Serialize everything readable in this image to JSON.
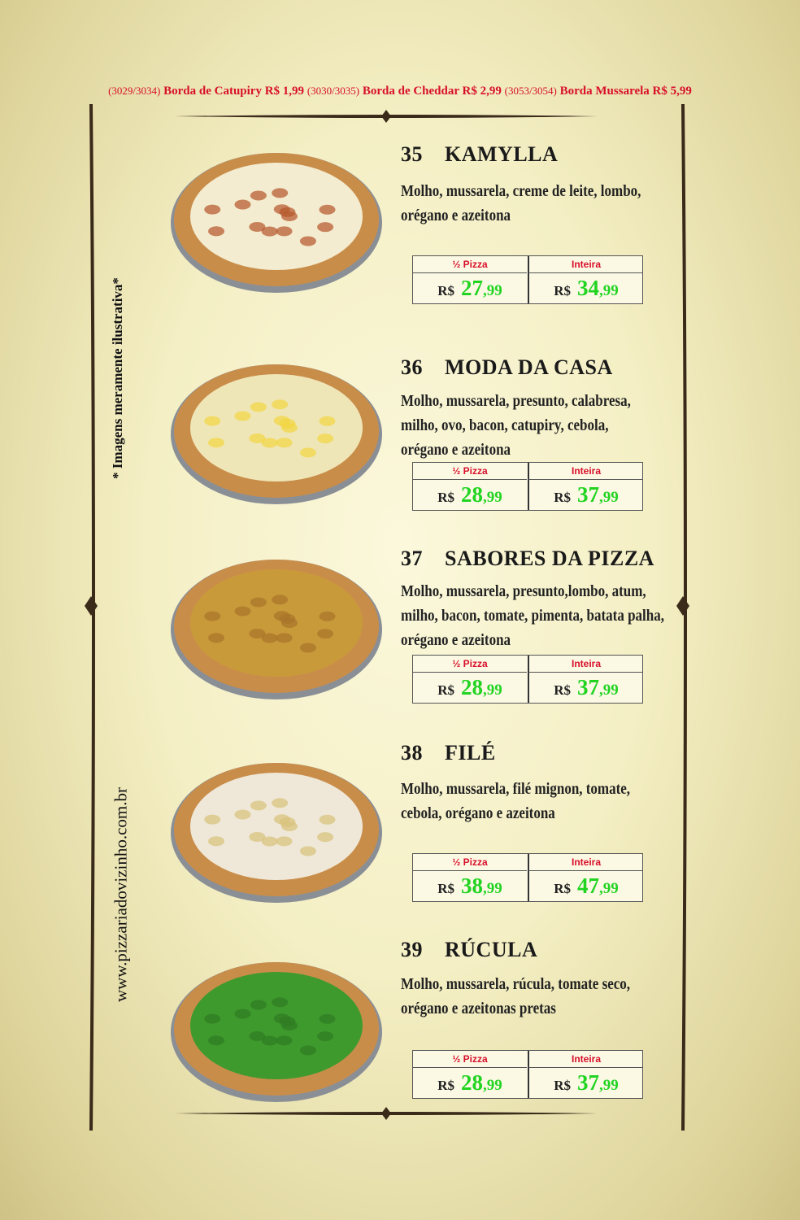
{
  "header": {
    "items": [
      {
        "code": "(3029/3034)",
        "name": "Borda de Catupiry",
        "price": "R$ 1,99"
      },
      {
        "code": "(3030/3035)",
        "name": "Borda de Cheddar",
        "price": "R$ 2,99"
      },
      {
        "code": "(3053/3054)",
        "name": "Borda Mussarela",
        "price": "R$ 5,99"
      }
    ]
  },
  "side": {
    "note": "* Imagens meramente ilustrativa*",
    "website": "www.pizzariadovizinho.com.br"
  },
  "price_labels": {
    "half": "½ Pizza",
    "whole": "Inteira",
    "currency": "R$"
  },
  "items": [
    {
      "number": "35",
      "name": "KAMYLLA",
      "description": [
        "Molho, mussarela, creme de leite, lombo,",
        "orégano e azeitona"
      ],
      "half": {
        "whole": "27",
        "cents": ",99"
      },
      "full": {
        "whole": "34",
        "cents": ",99"
      }
    },
    {
      "number": "36",
      "name": "MODA DA CASA",
      "description": [
        "Molho, mussarela, presunto, calabresa,",
        "milho, ovo, bacon, catupiry, cebola,",
        "orégano e azeitona"
      ],
      "half": {
        "whole": "28",
        "cents": ",99"
      },
      "full": {
        "whole": "37",
        "cents": ",99"
      }
    },
    {
      "number": "37",
      "name": "SABORES DA PIZZA",
      "description": [
        "Molho, mussarela, presunto,lombo, atum,",
        "milho, bacon, tomate, pimenta, batata palha,",
        "orégano e azeitona"
      ],
      "half": {
        "whole": "28",
        "cents": ",99"
      },
      "full": {
        "whole": "37",
        "cents": ",99"
      }
    },
    {
      "number": "38",
      "name": "FILÉ",
      "description": [
        "Molho, mussarela, filé mignon, tomate,",
        "cebola, orégano e azeitona"
      ],
      "half": {
        "whole": "38",
        "cents": ",99"
      },
      "full": {
        "whole": "47",
        "cents": ",99"
      }
    },
    {
      "number": "39",
      "name": "RÚCULA",
      "description": [
        "Molho, mussarela, rúcula, tomate seco,",
        "orégano e azeitonas pretas"
      ],
      "half": {
        "whole": "28",
        "cents": ",99"
      },
      "full": {
        "whole": "37",
        "cents": ",99"
      }
    }
  ]
}
